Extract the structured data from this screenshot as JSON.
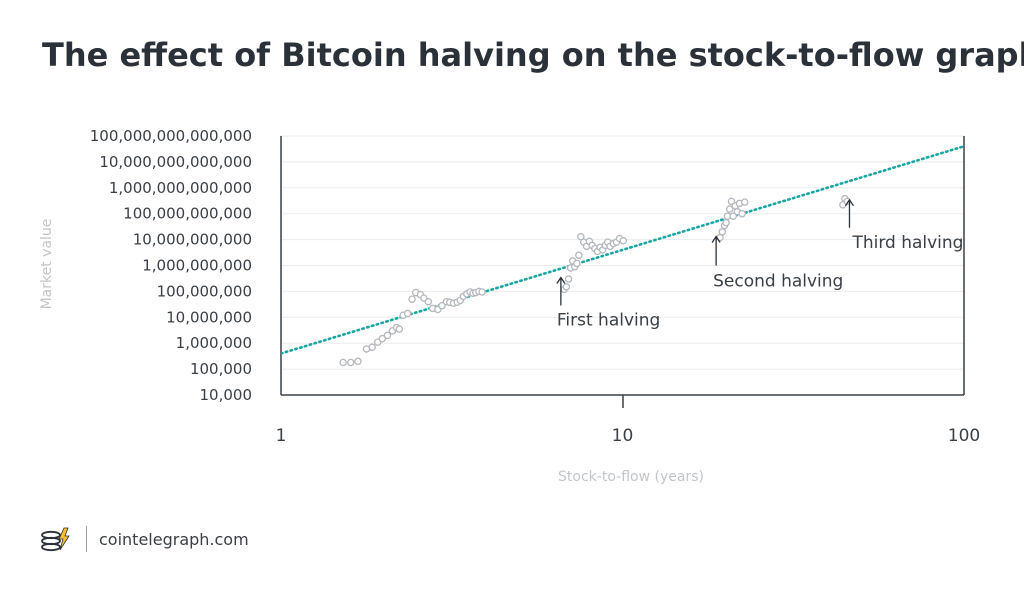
{
  "chart_data": {
    "type": "scatter",
    "title": "The effect of Bitcoin halving on the stock-to-flow graph",
    "xlabel": "Stock-to-flow (years)",
    "ylabel": "Market value",
    "xscale": "log",
    "yscale": "log",
    "xlim": [
      1,
      100
    ],
    "ylim": [
      10000,
      100000000000000
    ],
    "xticks": [
      1,
      10,
      100
    ],
    "xtick_labels": [
      "1",
      "10",
      "100"
    ],
    "yticks": [
      10000,
      100000,
      1000000,
      10000000,
      100000000,
      1000000000,
      10000000000,
      100000000000,
      1000000000000,
      10000000000000,
      100000000000000
    ],
    "ytick_labels": [
      "10,000",
      "100,000",
      "1,000,000",
      "10,000,000",
      "100,000,000",
      "1,000,000,000",
      "10,000,000,000",
      "100,000,000,000",
      "1,000,000,000,000",
      "10,000,000,000,000",
      "100,000,000,000,000"
    ],
    "grid": "horizontal",
    "trend_line": {
      "style": "dotted",
      "color": "#1aa6a0",
      "points": [
        [
          1,
          400000
        ],
        [
          100,
          40000000000000
        ]
      ]
    },
    "marker_color": "#b3b8bd",
    "series": [
      {
        "points": [
          [
            1.52,
            180000
          ],
          [
            1.6,
            180000
          ],
          [
            1.68,
            200000
          ],
          [
            1.78,
            600000
          ],
          [
            1.85,
            700000
          ],
          [
            1.92,
            1100000
          ],
          [
            1.98,
            1500000
          ],
          [
            2.05,
            2000000
          ],
          [
            2.12,
            3000000
          ],
          [
            2.18,
            4000000
          ],
          [
            2.22,
            3500000
          ],
          [
            2.28,
            12000000
          ],
          [
            2.35,
            14000000
          ],
          [
            2.42,
            50000000
          ],
          [
            2.48,
            90000000
          ],
          [
            2.56,
            75000000
          ],
          [
            2.62,
            55000000
          ],
          [
            2.7,
            40000000
          ],
          [
            2.78,
            22000000
          ],
          [
            2.88,
            20000000
          ],
          [
            2.96,
            28000000
          ],
          [
            3.05,
            40000000
          ],
          [
            3.12,
            38000000
          ],
          [
            3.2,
            35000000
          ],
          [
            3.28,
            38000000
          ],
          [
            3.35,
            45000000
          ],
          [
            3.42,
            65000000
          ],
          [
            3.5,
            80000000
          ],
          [
            3.58,
            95000000
          ],
          [
            3.65,
            85000000
          ],
          [
            3.72,
            90000000
          ],
          [
            3.8,
            100000000
          ],
          [
            3.88,
            95000000
          ],
          [
            6.75,
            120000000
          ],
          [
            6.85,
            150000000
          ],
          [
            6.95,
            300000000
          ],
          [
            7.05,
            800000000
          ],
          [
            7.15,
            1500000000
          ],
          [
            7.25,
            900000000
          ],
          [
            7.35,
            1200000000
          ],
          [
            7.45,
            2500000000
          ],
          [
            7.55,
            13000000000
          ],
          [
            7.7,
            8000000000
          ],
          [
            7.85,
            5500000000
          ],
          [
            8.0,
            8500000000
          ],
          [
            8.15,
            6000000000
          ],
          [
            8.3,
            4500000000
          ],
          [
            8.45,
            3500000000
          ],
          [
            8.6,
            5000000000
          ],
          [
            8.75,
            4000000000
          ],
          [
            8.9,
            6000000000
          ],
          [
            9.05,
            8000000000
          ],
          [
            9.2,
            5500000000
          ],
          [
            9.4,
            7000000000
          ],
          [
            9.6,
            8000000000
          ],
          [
            9.8,
            11000000000
          ],
          [
            10.05,
            9000000000
          ],
          [
            19.3,
            12000000000
          ],
          [
            19.6,
            20000000000
          ],
          [
            19.9,
            35000000000
          ],
          [
            20.1,
            45000000000
          ],
          [
            20.3,
            80000000000
          ],
          [
            20.6,
            150000000000
          ],
          [
            20.85,
            300000000000
          ],
          [
            21.1,
            80000000000
          ],
          [
            21.4,
            200000000000
          ],
          [
            21.7,
            120000000000
          ],
          [
            22.0,
            250000000000
          ],
          [
            22.4,
            100000000000
          ],
          [
            22.8,
            280000000000
          ],
          [
            44.2,
            220000000000
          ],
          [
            44.8,
            380000000000
          ],
          [
            45.5,
            300000000000
          ]
        ]
      }
    ],
    "annotations": [
      {
        "text": "First halving",
        "x": 6.6,
        "y": 1000000000
      },
      {
        "text": "Second halving",
        "x": 18.8,
        "y": 35000000000
      },
      {
        "text": "Third halving",
        "x": 46.2,
        "y": 1000000000000
      }
    ]
  },
  "footer": {
    "site": "cointelegraph.com",
    "brand_colors": {
      "dark": "#2b3138",
      "accent": "#f7c12b"
    }
  }
}
